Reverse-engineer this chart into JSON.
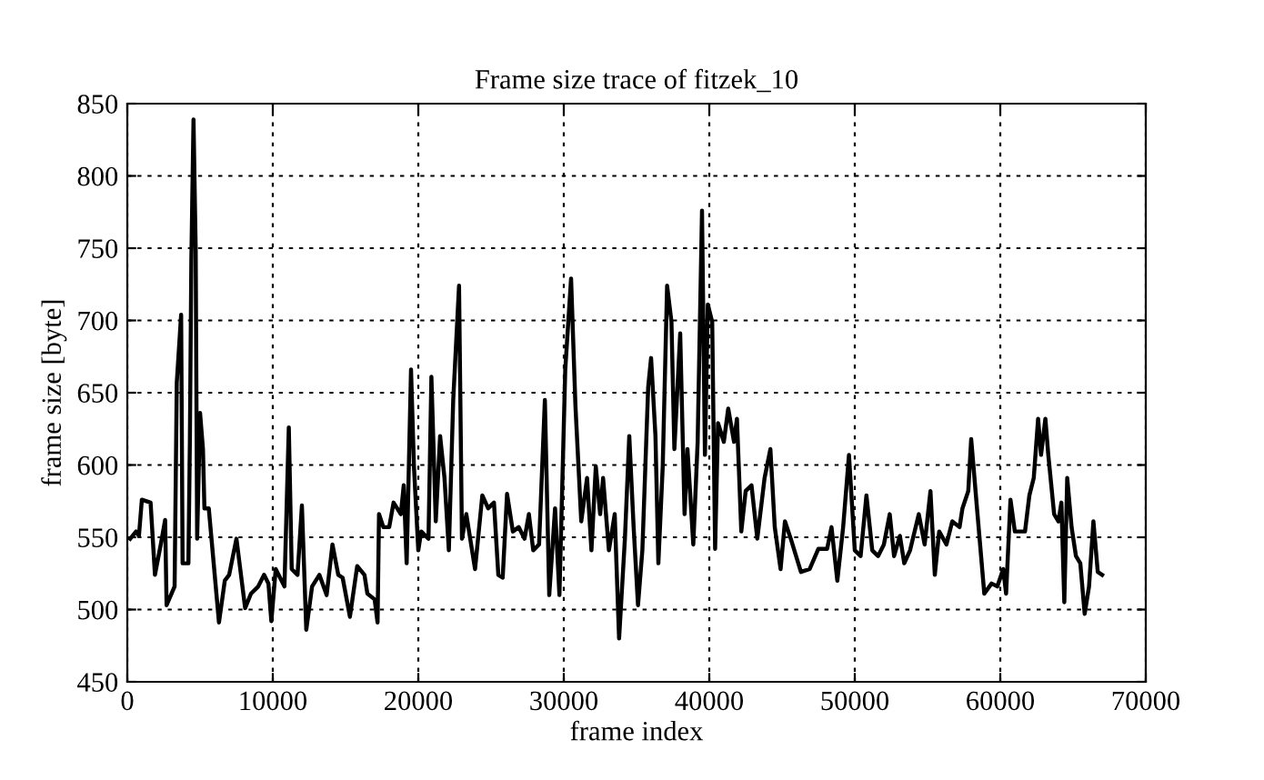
{
  "chart_data": {
    "type": "line",
    "title": "Frame size trace of fitzek_10",
    "xlabel": "frame index",
    "ylabel": "frame size [byte]",
    "xlim": [
      0,
      70000
    ],
    "ylim": [
      450,
      850
    ],
    "xticks": [
      0,
      10000,
      20000,
      30000,
      40000,
      50000,
      60000,
      70000
    ],
    "yticks": [
      450,
      500,
      550,
      600,
      650,
      700,
      750,
      800,
      850
    ],
    "grid": true,
    "legend": false,
    "marker": "none",
    "line_style": "solid",
    "series": [
      {
        "color": "#000000",
        "x": [
          200,
          600,
          800,
          1000,
          1600,
          1900,
          2300,
          2600,
          2700,
          3250,
          3400,
          3700,
          3800,
          4200,
          4300,
          4400,
          4550,
          4700,
          4800,
          5000,
          5200,
          5300,
          5600,
          6300,
          6700,
          7000,
          7500,
          8100,
          8500,
          9000,
          9400,
          9700,
          9900,
          10200,
          10800,
          11100,
          11300,
          11700,
          12000,
          12300,
          12700,
          13200,
          13700,
          14100,
          14500,
          14800,
          15300,
          15800,
          16300,
          16500,
          17000,
          17200,
          17300,
          17600,
          18000,
          18300,
          18800,
          19000,
          19200,
          19500,
          19700,
          20000,
          20200,
          20700,
          20900,
          21200,
          21500,
          21800,
          22100,
          22400,
          22800,
          23000,
          23300,
          23900,
          24400,
          24800,
          25200,
          25500,
          25800,
          26100,
          26500,
          26900,
          27300,
          27600,
          27900,
          28300,
          28700,
          29000,
          29400,
          29700,
          30100,
          30500,
          30800,
          31200,
          31600,
          31900,
          32200,
          32500,
          32700,
          33100,
          33500,
          33800,
          34200,
          34500,
          34800,
          35100,
          35400,
          35800,
          36000,
          36300,
          36500,
          36800,
          37100,
          37400,
          37600,
          38000,
          38300,
          38500,
          38900,
          39200,
          39500,
          39700,
          39900,
          40200,
          40400,
          40600,
          41000,
          41300,
          41700,
          41900,
          42200,
          42500,
          42900,
          43300,
          43800,
          44200,
          44500,
          44900,
          45200,
          45600,
          46300,
          46900,
          47500,
          48100,
          48400,
          48800,
          49200,
          49600,
          50000,
          50400,
          50800,
          51200,
          51600,
          52000,
          52400,
          52700,
          53100,
          53400,
          53800,
          54400,
          54800,
          55200,
          55500,
          55800,
          56300,
          56700,
          57200,
          57400,
          57800,
          58000,
          58400,
          58900,
          59400,
          59800,
          60200,
          60400,
          60700,
          61000,
          61700,
          62000,
          62300,
          62600,
          62800,
          63100,
          63300,
          63700,
          64000,
          64200,
          64400,
          64600,
          64900,
          65200,
          65500,
          65800,
          66100,
          66400,
          66700,
          67000
        ],
        "values": [
          549,
          554,
          551,
          576,
          574,
          524,
          545,
          562,
          503,
          516,
          657,
          704,
          532,
          532,
          616,
          741,
          839,
          749,
          549,
          636,
          611,
          570,
          570,
          491,
          520,
          524,
          549,
          501,
          511,
          516,
          524,
          518,
          492,
          528,
          516,
          626,
          528,
          524,
          572,
          486,
          516,
          524,
          510,
          545,
          524,
          522,
          495,
          530,
          524,
          511,
          507,
          491,
          566,
          557,
          557,
          574,
          566,
          586,
          532,
          666,
          599,
          541,
          554,
          549,
          661,
          561,
          620,
          591,
          541,
          645,
          724,
          549,
          566,
          528,
          579,
          570,
          574,
          524,
          522,
          580,
          554,
          557,
          549,
          566,
          541,
          545,
          645,
          510,
          570,
          510,
          666,
          729,
          641,
          561,
          591,
          541,
          599,
          566,
          591,
          541,
          566,
          480,
          549,
          620,
          557,
          503,
          541,
          654,
          674,
          620,
          532,
          599,
          724,
          699,
          611,
          691,
          566,
          611,
          545,
          616,
          776,
          607,
          711,
          699,
          542,
          629,
          616,
          639,
          616,
          632,
          554,
          582,
          586,
          549,
          591,
          611,
          557,
          528,
          561,
          549,
          526,
          528,
          542,
          542,
          557,
          520,
          557,
          607,
          541,
          537,
          579,
          541,
          537,
          545,
          566,
          537,
          551,
          532,
          541,
          566,
          545,
          582,
          524,
          554,
          545,
          561,
          557,
          570,
          582,
          618,
          570,
          511,
          518,
          516,
          528,
          511,
          576,
          554,
          554,
          579,
          591,
          632,
          607,
          632,
          607,
          566,
          561,
          574,
          505,
          591,
          557,
          537,
          532,
          497,
          516,
          561,
          526,
          524
        ]
      }
    ]
  }
}
